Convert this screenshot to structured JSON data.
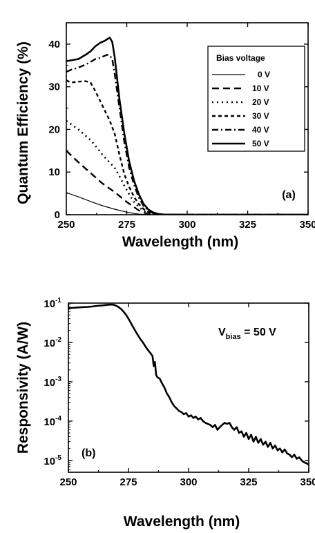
{
  "chart_data": [
    {
      "type": "line",
      "panel_label": "(a)",
      "xlabel": "Wavelength (nm)",
      "ylabel": "Quantum Efficiency (%)",
      "xlim": [
        250,
        350
      ],
      "ylim": [
        0,
        45
      ],
      "xticks": [
        "250",
        "275",
        "300",
        "325",
        "350"
      ],
      "yticks": [
        "0",
        "10",
        "20",
        "30",
        "40"
      ],
      "legend_title": "Bias voltage",
      "legend_placement": "top-right",
      "series": [
        {
          "name": "0 V",
          "dash": "solid-thin",
          "x": [
            250,
            255,
            260,
            265,
            270,
            275,
            278,
            280,
            283,
            285,
            290,
            300,
            350
          ],
          "y": [
            5.2,
            4.2,
            3.1,
            2.1,
            1.3,
            0.6,
            0.3,
            0.15,
            0.05,
            0.02,
            0,
            0,
            0
          ]
        },
        {
          "name": "10 V",
          "dash": "dash",
          "x": [
            250,
            255,
            260,
            265,
            270,
            275,
            278,
            280,
            283,
            285,
            290,
            300,
            350
          ],
          "y": [
            15,
            12.3,
            9.8,
            7.3,
            5.3,
            3.0,
            1.8,
            1.0,
            0.3,
            0.1,
            0,
            0,
            0
          ]
        },
        {
          "name": "20 V",
          "dash": "dot",
          "x": [
            250,
            255,
            260,
            263,
            265,
            268,
            270,
            272,
            274,
            276,
            278,
            280,
            282,
            284,
            286,
            290,
            300,
            350
          ],
          "y": [
            22,
            20,
            17.5,
            15.5,
            14,
            12.2,
            11,
            9,
            6.8,
            4.8,
            3.0,
            1.8,
            0.9,
            0.4,
            0.15,
            0.05,
            0,
            0
          ]
        },
        {
          "name": "30 V",
          "dash": "short-dash",
          "x": [
            250,
            252,
            255,
            258,
            260,
            262,
            265,
            268,
            270,
            272,
            274,
            276,
            278,
            280,
            282,
            284,
            286,
            290,
            300,
            350
          ],
          "y": [
            31.5,
            31,
            31.2,
            31.3,
            31,
            29,
            25.5,
            22,
            19,
            14,
            9.5,
            6.5,
            4.2,
            2.5,
            1.3,
            0.6,
            0.2,
            0.05,
            0,
            0
          ]
        },
        {
          "name": "40 V",
          "dash": "dash-dot",
          "x": [
            250,
            252,
            255,
            258,
            260,
            262,
            264,
            266,
            267,
            268,
            269,
            270,
            272,
            274,
            276,
            278,
            280,
            282,
            284,
            286,
            290,
            300,
            350
          ],
          "y": [
            33.5,
            34,
            34.5,
            35.2,
            35.8,
            36.5,
            36.8,
            37.3,
            37.5,
            37.3,
            36.5,
            33,
            25,
            17,
            11,
            7,
            4,
            2,
            0.9,
            0.3,
            0.05,
            0,
            0
          ]
        },
        {
          "name": "50 V",
          "dash": "solid",
          "x": [
            250,
            252,
            255,
            258,
            260,
            262,
            264,
            266,
            267,
            268,
            269,
            270,
            271,
            272,
            274,
            276,
            278,
            280,
            282,
            284,
            286,
            288,
            290,
            300,
            350
          ],
          "y": [
            36,
            36.2,
            36.5,
            37.5,
            38.3,
            39.5,
            40.3,
            40.8,
            41.2,
            41.5,
            40.5,
            37,
            32,
            27,
            19,
            12.5,
            8,
            4.8,
            2.5,
            1.2,
            0.5,
            0.2,
            0.05,
            0,
            0
          ]
        }
      ]
    },
    {
      "type": "line",
      "panel_label": "(b)",
      "xlabel": "Wavelength (nm)",
      "ylabel": "Responsivity (A/W)",
      "xlim": [
        250,
        350
      ],
      "ylim": [
        5e-06,
        0.1
      ],
      "yscale": "log",
      "xticks": [
        "250",
        "275",
        "300",
        "325",
        "350"
      ],
      "yticks": [
        {
          "base": "10",
          "exp": "-1",
          "value": 0.1
        },
        {
          "base": "10",
          "exp": "-2",
          "value": 0.01
        },
        {
          "base": "10",
          "exp": "-3",
          "value": 0.001
        },
        {
          "base": "10",
          "exp": "-4",
          "value": 0.0001
        },
        {
          "base": "10",
          "exp": "-5",
          "value": 1e-05
        }
      ],
      "annotation": {
        "main": "V",
        "sub": "bias",
        "rest": " = 50 V"
      },
      "series": [
        {
          "x": [
            250,
            252,
            255,
            258,
            260,
            262,
            264,
            266,
            268,
            269,
            270,
            271,
            272,
            273,
            274,
            275,
            276,
            277,
            278,
            279,
            280,
            281,
            282,
            283,
            284,
            285,
            285.5,
            286,
            286.5,
            287,
            288,
            289,
            290,
            291,
            292,
            293,
            294,
            295,
            296,
            297,
            298,
            299,
            300,
            301,
            302,
            303,
            304,
            305,
            306,
            307,
            308,
            309,
            310,
            311,
            312,
            313,
            314,
            315,
            316,
            317,
            318,
            319,
            320,
            321,
            322,
            323,
            324,
            325,
            326,
            327,
            328,
            329,
            330,
            331,
            332,
            333,
            334,
            335,
            336,
            337,
            338,
            339,
            340,
            341,
            342,
            343,
            344,
            345,
            346,
            347,
            348,
            349,
            350
          ],
          "y": [
            0.075,
            0.076,
            0.078,
            0.08,
            0.082,
            0.085,
            0.087,
            0.09,
            0.092,
            0.09,
            0.085,
            0.078,
            0.07,
            0.06,
            0.05,
            0.04,
            0.031,
            0.024,
            0.019,
            0.015,
            0.012,
            0.01,
            0.008,
            0.0065,
            0.0055,
            0.0045,
            0.0025,
            0.0032,
            0.0015,
            0.0013,
            0.0012,
            0.0009,
            0.0007,
            0.0005,
            0.0004,
            0.0003,
            0.00024,
            0.00021,
            0.00018,
            0.00017,
            0.00015,
            0.00016,
            0.00013,
            0.00014,
            0.00012,
            0.00013,
            0.00011,
            0.00012,
            0.0001,
            9e-05,
            8.5e-05,
            8e-05,
            7e-05,
            8e-05,
            6e-05,
            7e-05,
            8e-05,
            9e-05,
            8.5e-05,
            9e-05,
            7e-05,
            6e-05,
            7e-05,
            5e-05,
            5.5e-05,
            4e-05,
            5e-05,
            3.5e-05,
            4.5e-05,
            3e-05,
            4e-05,
            2.8e-05,
            3.5e-05,
            2.5e-05,
            3e-05,
            2.2e-05,
            2.8e-05,
            2e-05,
            2.4e-05,
            1.8e-05,
            2e-05,
            1.6e-05,
            1.9e-05,
            1.5e-05,
            1.4e-05,
            1.2e-05,
            1.4e-05,
            1.1e-05,
            1.2e-05,
            1e-05,
            9e-06,
            8.5e-06,
            7.8e-06
          ]
        }
      ]
    }
  ]
}
